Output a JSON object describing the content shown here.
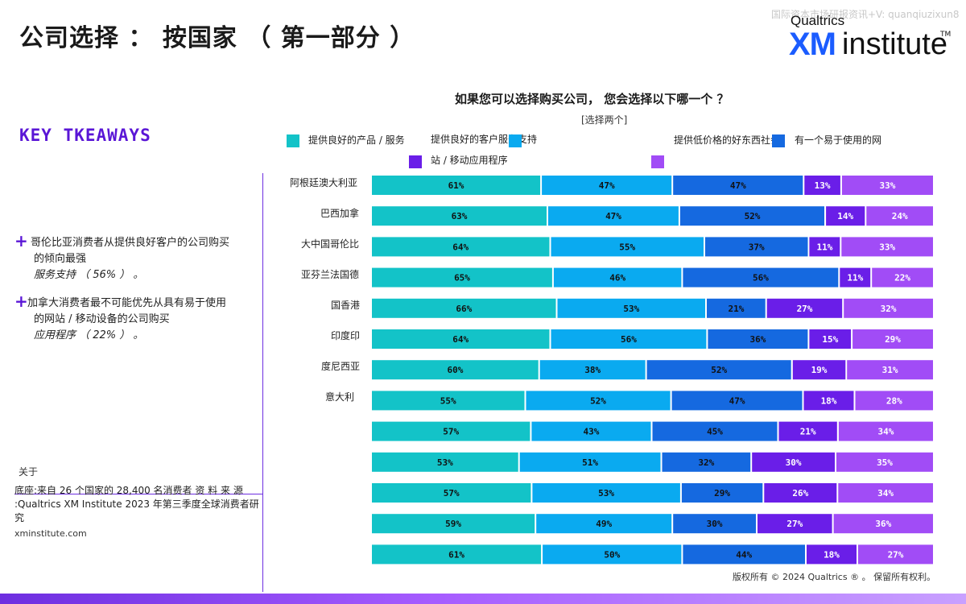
{
  "header": {
    "title": "公司选择 ： 按国家 （ 第一部分 ）",
    "watermark": "国际资本市场研报资讯+V: quanqiuzixun8"
  },
  "logo": {
    "top": "Qualtrics",
    "xm": "XM",
    "institute": "institute",
    "tm": "TM"
  },
  "takeaways": {
    "title": "KEY TKEAWAYS",
    "bullets": [
      {
        "line1": "哥伦比亚消费者从提供良好客户的公司购买",
        "line2": "的倾向最强",
        "line3": "服务支持 （ 56% ） 。"
      },
      {
        "line1": "加拿大消费者最不可能优先从具有易于使用",
        "line2": "的网站 / 移动设备的公司购买",
        "line3": "应用程序 （ 22% ） 。"
      }
    ]
  },
  "footer": {
    "about": "关于",
    "base_line1": "底座:来自 26 个国家的 28,400 名消费者 资 料 来 源",
    "base_line2": ":Qualtrics XM Institute 2023 年第三季度全球消费者研",
    "base_line3": "究",
    "site": "xminstitute.com",
    "copyright": "版权所有 © 2024 Qualtrics ® 。 保留所有权利。"
  },
  "legend": {
    "items": [
      {
        "text": "提供良好的产品 / 服务"
      },
      {
        "text": "提供良好的客户服务支持"
      },
      {
        "text": "提供低价格的好东西社会"
      },
      {
        "text": "有一个易于使用的网"
      },
      {
        "text": "站 / 移动应用程序"
      }
    ]
  },
  "row_labels": [
    "阿根廷澳大利亚",
    "巴西加拿",
    "大中国哥伦比",
    "亚芬兰法国德",
    "国香港",
    "印度印",
    "度尼西亚",
    "意大利"
  ],
  "chart_data": {
    "type": "bar",
    "orientation": "horizontal",
    "stacked": true,
    "title": "如果您可以选择购买公司， 您会选择以下哪一个 ？",
    "subtitle": "[选择两个]",
    "series": [
      {
        "color": "#13c3c8",
        "values": [
          61,
          63,
          64,
          65,
          66,
          64,
          60,
          55,
          57,
          53,
          57,
          59,
          61
        ]
      },
      {
        "color": "#0aaaf0",
        "values": [
          47,
          47,
          55,
          46,
          53,
          56,
          38,
          52,
          43,
          51,
          53,
          49,
          50
        ]
      },
      {
        "color": "#1569e0",
        "values": [
          47,
          52,
          37,
          56,
          21,
          36,
          52,
          47,
          45,
          32,
          29,
          30,
          44
        ]
      },
      {
        "color": "#6a1ee8",
        "values": [
          13,
          14,
          11,
          11,
          27,
          15,
          19,
          18,
          21,
          30,
          26,
          27,
          18
        ]
      },
      {
        "color": "#a14cf6",
        "values": [
          33,
          24,
          33,
          22,
          32,
          29,
          31,
          28,
          34,
          35,
          34,
          36,
          27
        ]
      }
    ],
    "value_suffix": "%"
  }
}
